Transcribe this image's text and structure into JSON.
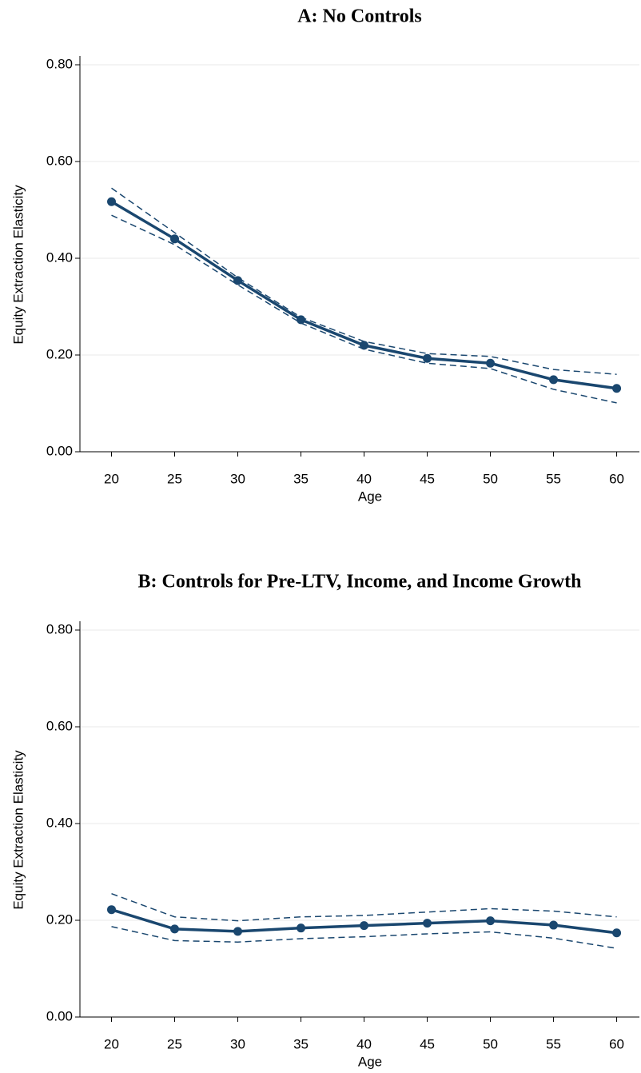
{
  "chart_data": [
    {
      "type": "line",
      "title": "A: No Controls",
      "x_label": "Age",
      "y_label": "Equity Extraction Elasticity",
      "x": [
        20,
        25,
        30,
        35,
        40,
        45,
        50,
        55,
        60
      ],
      "series": [
        {
          "color": "#1a476f",
          "style": "solid",
          "markers": true,
          "values": [
            0.517,
            0.44,
            0.354,
            0.273,
            0.22,
            0.193,
            0.183,
            0.149,
            0.131
          ]
        },
        {
          "color": "#1a476f",
          "style": "dashed",
          "markers": false,
          "values": [
            0.545,
            0.453,
            0.36,
            0.278,
            0.228,
            0.203,
            0.197,
            0.17,
            0.16
          ]
        },
        {
          "color": "#1a476f",
          "style": "dashed",
          "markers": false,
          "values": [
            0.489,
            0.428,
            0.345,
            0.266,
            0.212,
            0.183,
            0.172,
            0.129,
            0.101
          ]
        }
      ],
      "xlim": [
        17.5,
        61.8
      ],
      "ylim": [
        0,
        0.8
      ],
      "xticks": [
        20,
        25,
        30,
        35,
        40,
        45,
        50,
        55,
        60
      ],
      "yticks": [
        {
          "value": 0,
          "label": "0.00"
        },
        {
          "value": 0.2,
          "label": "0.20"
        },
        {
          "value": 0.4,
          "label": "0.40"
        },
        {
          "value": 0.6,
          "label": "0.60"
        },
        {
          "value": 0.8,
          "label": "0.80"
        }
      ],
      "grid": true
    },
    {
      "type": "line",
      "title": "B: Controls for Pre-LTV, Income, and Income Growth",
      "x_label": "Age",
      "y_label": "Equity Extraction Elasticity",
      "x": [
        20,
        25,
        30,
        35,
        40,
        45,
        50,
        55,
        60
      ],
      "series": [
        {
          "color": "#1a476f",
          "style": "solid",
          "markers": true,
          "values": [
            0.222,
            0.182,
            0.177,
            0.184,
            0.189,
            0.194,
            0.199,
            0.19,
            0.174
          ]
        },
        {
          "color": "#1a476f",
          "style": "dashed",
          "markers": false,
          "values": [
            0.255,
            0.207,
            0.199,
            0.207,
            0.21,
            0.217,
            0.224,
            0.219,
            0.207
          ]
        },
        {
          "color": "#1a476f",
          "style": "dashed",
          "markers": false,
          "values": [
            0.187,
            0.158,
            0.155,
            0.162,
            0.166,
            0.172,
            0.176,
            0.163,
            0.142
          ]
        }
      ],
      "xlim": [
        17.5,
        61.8
      ],
      "ylim": [
        0,
        0.8
      ],
      "xticks": [
        20,
        25,
        30,
        35,
        40,
        45,
        50,
        55,
        60
      ],
      "yticks": [
        {
          "value": 0,
          "label": "0.00"
        },
        {
          "value": 0.2,
          "label": "0.20"
        },
        {
          "value": 0.4,
          "label": "0.40"
        },
        {
          "value": 0.6,
          "label": "0.60"
        },
        {
          "value": 0.8,
          "label": "0.80"
        }
      ],
      "grid": true
    }
  ]
}
